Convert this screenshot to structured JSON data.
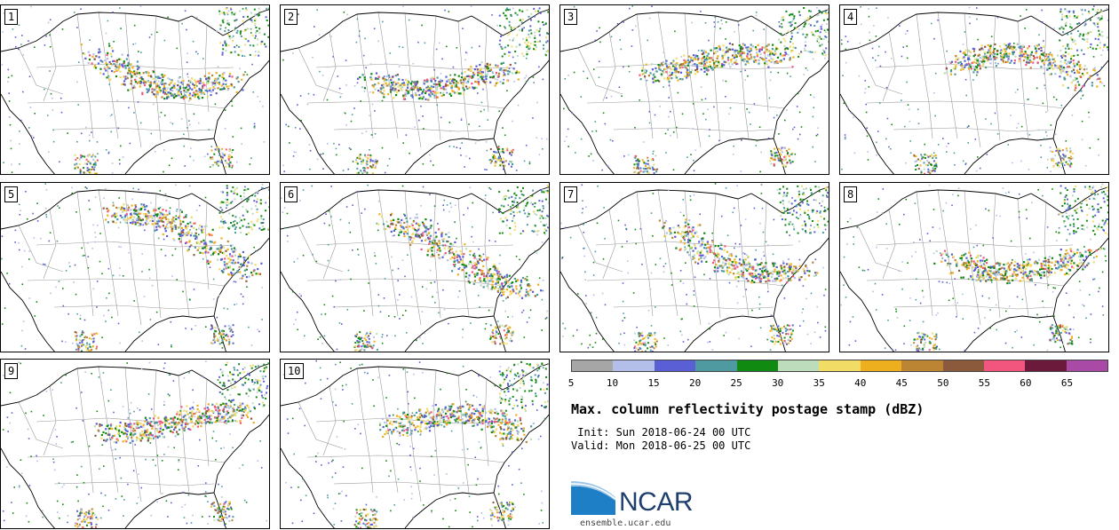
{
  "panels": [
    {
      "id": 1,
      "label": "1"
    },
    {
      "id": 2,
      "label": "2"
    },
    {
      "id": 3,
      "label": "3"
    },
    {
      "id": 4,
      "label": "4"
    },
    {
      "id": 5,
      "label": "5"
    },
    {
      "id": 6,
      "label": "6"
    },
    {
      "id": 7,
      "label": "7"
    },
    {
      "id": 8,
      "label": "8"
    },
    {
      "id": 9,
      "label": "9"
    },
    {
      "id": 10,
      "label": "10"
    }
  ],
  "legend": {
    "colors": [
      "#a6a6a6",
      "#b3bfe8",
      "#5a5fd6",
      "#4e9aa0",
      "#108a10",
      "#bcdcbc",
      "#f1dc66",
      "#eeaf1e",
      "#bb8533",
      "#8b5a3c",
      "#f2557d",
      "#6b1a3c",
      "#a84aa6"
    ],
    "ticks": [
      "5",
      "10",
      "15",
      "20",
      "25",
      "30",
      "35",
      "40",
      "45",
      "50",
      "55",
      "60",
      "65"
    ]
  },
  "title": "Max. column reflectivity postage stamp (dBZ)",
  "init_line": " Init: Sun 2018-06-24 00 UTC",
  "valid_line": "Valid: Mon 2018-06-25 00 UTC",
  "logo": {
    "word": "NCAR",
    "url": "ensemble.ucar.edu"
  }
}
